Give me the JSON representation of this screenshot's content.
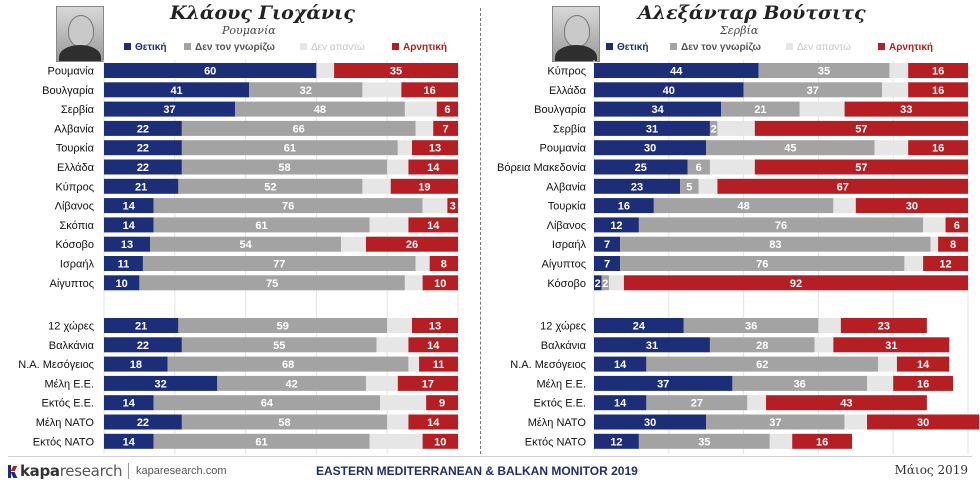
{
  "colors": {
    "positive": "#1c2e78",
    "unknown": "#a3a3a3",
    "no_answer": "#e6e6e6",
    "negative": "#b51e22"
  },
  "legend": {
    "positive": "Θετική",
    "unknown": "Δεν τον γνωρίζω",
    "no_answer": "Δεν απαντώ",
    "negative": "Αρνητική"
  },
  "left_panel": {
    "name": "Κλάους Γιοχάνις",
    "country": "Ρουμανία",
    "portrait_icon": "person-portrait"
  },
  "right_panel": {
    "name": "Αλεξάνταρ Βούτσιτς",
    "country": "Σερβία",
    "portrait_icon": "person-portrait"
  },
  "chart_data": [
    {
      "type": "bar",
      "stacked": true,
      "orientation": "horizontal",
      "xlim": [
        0,
        100
      ],
      "series_order": [
        "positive",
        "unknown",
        "no_answer",
        "negative"
      ],
      "groups": [
        {
          "rows": [
            {
              "label": "Ρουμανία",
              "positive": 60,
              "unknown": 0,
              "no_answer": 5,
              "negative": 35
            },
            {
              "label": "Βουλγαρία",
              "positive": 41,
              "unknown": 32,
              "no_answer": 11,
              "negative": 16
            },
            {
              "label": "Σερβία",
              "positive": 37,
              "unknown": 48,
              "no_answer": 9,
              "negative": 6
            },
            {
              "label": "Αλβανία",
              "positive": 22,
              "unknown": 66,
              "no_answer": 5,
              "negative": 7
            },
            {
              "label": "Τουρκία",
              "positive": 22,
              "unknown": 61,
              "no_answer": 4,
              "negative": 13
            },
            {
              "label": "Ελλάδα",
              "positive": 22,
              "unknown": 58,
              "no_answer": 6,
              "negative": 14
            },
            {
              "label": "Κύπρος",
              "positive": 21,
              "unknown": 52,
              "no_answer": 8,
              "negative": 19
            },
            {
              "label": "Λίβανος",
              "positive": 14,
              "unknown": 76,
              "no_answer": 7,
              "negative": 3
            },
            {
              "label": "Σκόπια",
              "positive": 14,
              "unknown": 61,
              "no_answer": 11,
              "negative": 14
            },
            {
              "label": "Κόσοβο",
              "positive": 13,
              "unknown": 54,
              "no_answer": 7,
              "negative": 26
            },
            {
              "label": "Ισραήλ",
              "positive": 11,
              "unknown": 77,
              "no_answer": 4,
              "negative": 8
            },
            {
              "label": "Αίγυπτος",
              "positive": 10,
              "unknown": 75,
              "no_answer": 5,
              "negative": 10
            }
          ]
        },
        {
          "rows": [
            {
              "label": "12 χώρες",
              "positive": 21,
              "unknown": 59,
              "no_answer": 7,
              "negative": 13
            },
            {
              "label": "Βαλκάνια",
              "positive": 22,
              "unknown": 55,
              "no_answer": 9,
              "negative": 14
            },
            {
              "label": "Ν.Α. Μεσόγειος",
              "positive": 18,
              "unknown": 68,
              "no_answer": 3,
              "negative": 11
            },
            {
              "label": "Μέλη Ε.Ε.",
              "positive": 32,
              "unknown": 42,
              "no_answer": 9,
              "negative": 17
            },
            {
              "label": "Εκτός Ε.Ε.",
              "positive": 14,
              "unknown": 64,
              "no_answer": 13,
              "negative": 9
            },
            {
              "label": "Μέλη ΝΑΤΟ",
              "positive": 22,
              "unknown": 58,
              "no_answer": 6,
              "negative": 14
            },
            {
              "label": "Εκτός ΝΑΤΟ",
              "positive": 14,
              "unknown": 61,
              "no_answer": 15,
              "negative": 10
            }
          ]
        }
      ]
    },
    {
      "type": "bar",
      "stacked": true,
      "orientation": "horizontal",
      "xlim": [
        0,
        100
      ],
      "series_order": [
        "positive",
        "unknown",
        "no_answer",
        "negative"
      ],
      "groups": [
        {
          "rows": [
            {
              "label": "Κύπρος",
              "positive": 44,
              "unknown": 35,
              "no_answer": 5,
              "negative": 16
            },
            {
              "label": "Ελλάδα",
              "positive": 40,
              "unknown": 37,
              "no_answer": 7,
              "negative": 16
            },
            {
              "label": "Βουλγαρία",
              "positive": 34,
              "unknown": 21,
              "no_answer": 12,
              "negative": 33
            },
            {
              "label": "Σερβία",
              "positive": 31,
              "unknown": 2,
              "no_answer": 10,
              "negative": 57
            },
            {
              "label": "Ρουμανία",
              "positive": 30,
              "unknown": 45,
              "no_answer": 9,
              "negative": 16
            },
            {
              "label": "Βόρεια Μακεδονία",
              "positive": 25,
              "unknown": 6,
              "no_answer": 12,
              "negative": 57
            },
            {
              "label": "Αλβανία",
              "positive": 23,
              "unknown": 5,
              "no_answer": 5,
              "negative": 67
            },
            {
              "label": "Τουρκία",
              "positive": 16,
              "unknown": 48,
              "no_answer": 6,
              "negative": 30
            },
            {
              "label": "Λίβανος",
              "positive": 12,
              "unknown": 76,
              "no_answer": 6,
              "negative": 6
            },
            {
              "label": "Ισραήλ",
              "positive": 7,
              "unknown": 83,
              "no_answer": 2,
              "negative": 8
            },
            {
              "label": "Αίγυπτος",
              "positive": 7,
              "unknown": 76,
              "no_answer": 5,
              "negative": 12
            },
            {
              "label": "Κόσοβο",
              "positive": 2,
              "unknown": 2,
              "no_answer": 4,
              "negative": 92
            }
          ]
        },
        {
          "rows": [
            {
              "label": "12 χώρες",
              "positive": 24,
              "unknown": 36,
              "no_answer": 6,
              "negative": 23
            },
            {
              "label": "Βαλκάνια",
              "positive": 31,
              "unknown": 28,
              "no_answer": 5,
              "negative": 31
            },
            {
              "label": "Ν.Α. Μεσόγειος",
              "positive": 14,
              "unknown": 62,
              "no_answer": 5,
              "negative": 14
            },
            {
              "label": "Μέλη Ε.Ε.",
              "positive": 37,
              "unknown": 36,
              "no_answer": 7,
              "negative": 16
            },
            {
              "label": "Εκτός Ε.Ε.",
              "positive": 14,
              "unknown": 27,
              "no_answer": 5,
              "negative": 43
            },
            {
              "label": "Μέλη ΝΑΤΟ",
              "positive": 30,
              "unknown": 37,
              "no_answer": 6,
              "negative": 30
            },
            {
              "label": "Εκτός ΝΑΤΟ",
              "positive": 12,
              "unknown": 35,
              "no_answer": 6,
              "negative": 16
            }
          ]
        }
      ]
    }
  ],
  "footer": {
    "logo_word": "kapa",
    "logo_rest": "research",
    "website": "kaparesearch.com",
    "monitor_title": "EASTERN MEDITERRANEAN & BALKAN MONITOR 2019",
    "date": "Μάιος 2019"
  }
}
